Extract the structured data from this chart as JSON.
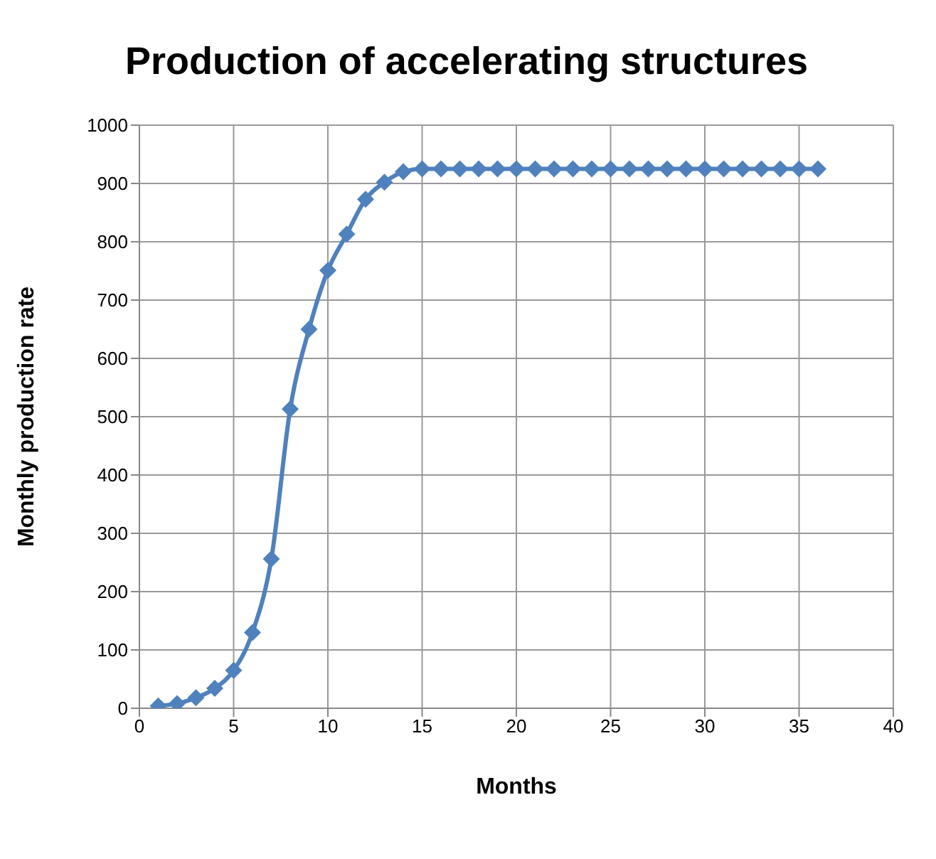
{
  "chart_data": {
    "type": "line",
    "title": "Production of accelerating structures",
    "xlabel": "Months",
    "ylabel": "Monthly production rate",
    "x": [
      1,
      2,
      3,
      4,
      5,
      6,
      7,
      8,
      9,
      10,
      11,
      12,
      13,
      14,
      15,
      16,
      17,
      18,
      19,
      20,
      21,
      22,
      23,
      24,
      25,
      26,
      27,
      28,
      29,
      30,
      31,
      32,
      33,
      34,
      35,
      36
    ],
    "series": [
      {
        "color": "#4f81bd",
        "values": [
          4,
          8,
          18,
          34,
          65,
          130,
          256,
          513,
          650,
          751,
          813,
          873,
          902,
          920,
          925,
          925,
          925,
          925,
          925,
          925,
          925,
          925,
          925,
          925,
          925,
          925,
          925,
          925,
          925,
          925,
          925,
          925,
          925,
          925,
          925,
          925
        ]
      }
    ],
    "xlim": [
      0,
      40
    ],
    "xticks": [
      0,
      5,
      10,
      15,
      20,
      25,
      30,
      35,
      40
    ],
    "ylim": [
      0,
      1000
    ],
    "yticks": [
      0,
      100,
      200,
      300,
      400,
      500,
      600,
      700,
      800,
      900,
      1000
    ],
    "grid": true,
    "marker": "diamond",
    "line_style": "solid",
    "legend": false
  }
}
